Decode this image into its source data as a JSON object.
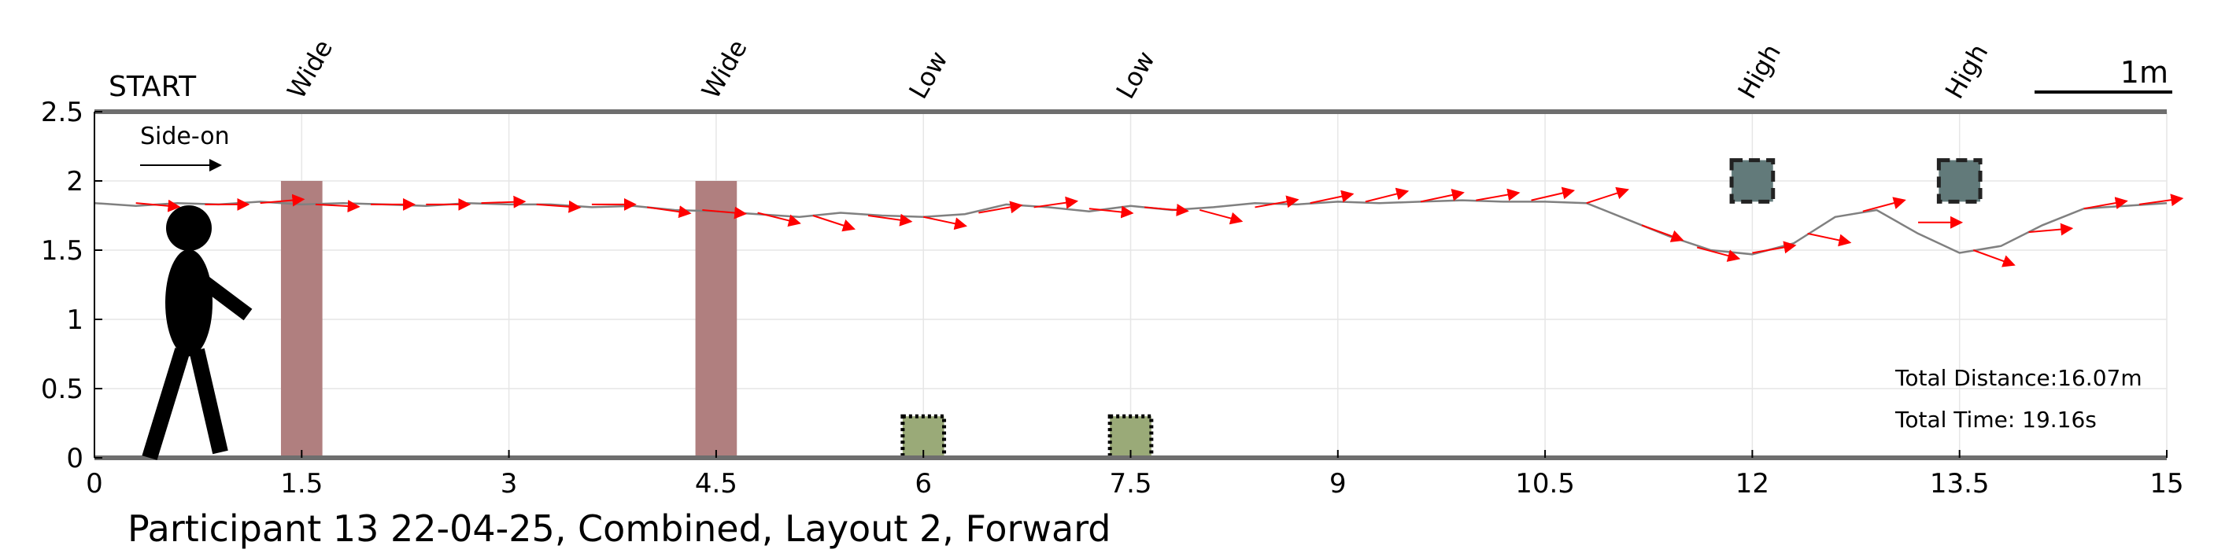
{
  "chart_data": {
    "type": "line",
    "title": "",
    "caption": "Participant 13 22-04-25, Combined, Layout 2, Forward",
    "start_label": "START",
    "scale_bar_label": "1m",
    "arrow_label": "Side-on",
    "xlim": [
      0,
      15
    ],
    "ylim": [
      0,
      2.5
    ],
    "grid": true,
    "x_ticks": [
      {
        "value": 0,
        "label": "0"
      },
      {
        "value": 1.5,
        "label": "1.5"
      },
      {
        "value": 3,
        "label": "3"
      },
      {
        "value": 4.5,
        "label": "4.5"
      },
      {
        "value": 6,
        "label": "6"
      },
      {
        "value": 7.5,
        "label": "7.5"
      },
      {
        "value": 9,
        "label": "9"
      },
      {
        "value": 10.5,
        "label": "10.5"
      },
      {
        "value": 12,
        "label": "12"
      },
      {
        "value": 13.5,
        "label": "13.5"
      },
      {
        "value": 15,
        "label": "15"
      }
    ],
    "y_ticks": [
      {
        "value": 0,
        "label": "0"
      },
      {
        "value": 0.5,
        "label": "0.5"
      },
      {
        "value": 1,
        "label": "1"
      },
      {
        "value": 1.5,
        "label": "1.5"
      },
      {
        "value": 2,
        "label": "2"
      },
      {
        "value": 2.5,
        "label": "2.5"
      }
    ],
    "obstacle_labels": [
      {
        "x": 1.5,
        "label": "Wide"
      },
      {
        "x": 4.5,
        "label": "Wide"
      },
      {
        "x": 6,
        "label": "Low"
      },
      {
        "x": 7.5,
        "label": "Low"
      },
      {
        "x": 12,
        "label": "High"
      },
      {
        "x": 13.5,
        "label": "High"
      }
    ],
    "obstacles": [
      {
        "kind": "wide",
        "x0": 1.35,
        "x1": 1.65,
        "y0": 0,
        "y1": 2.0,
        "color": "#b07f7f"
      },
      {
        "kind": "wide",
        "x0": 4.35,
        "x1": 4.65,
        "y0": 0,
        "y1": 2.0,
        "color": "#b07f7f"
      },
      {
        "kind": "low",
        "x0": 5.85,
        "x1": 6.15,
        "y0": 0,
        "y1": 0.3,
        "color": "#9aaa78"
      },
      {
        "kind": "low",
        "x0": 7.35,
        "x1": 7.65,
        "y0": 0,
        "y1": 0.3,
        "color": "#9aaa78"
      },
      {
        "kind": "high",
        "x0": 11.85,
        "x1": 12.15,
        "y0": 1.85,
        "y1": 2.15,
        "color": "#627a7a"
      },
      {
        "kind": "high",
        "x0": 13.35,
        "x1": 13.65,
        "y0": 1.85,
        "y1": 2.15,
        "color": "#627a7a"
      }
    ],
    "trajectory": {
      "color": "#808080",
      "x": [
        0,
        0.3,
        0.6,
        0.9,
        1.2,
        1.5,
        1.8,
        2.1,
        2.4,
        2.7,
        3.0,
        3.3,
        3.6,
        3.9,
        4.2,
        4.5,
        4.8,
        5.1,
        5.4,
        5.7,
        6.0,
        6.3,
        6.6,
        6.9,
        7.2,
        7.5,
        7.8,
        8.1,
        8.4,
        8.7,
        9.0,
        9.3,
        9.6,
        9.9,
        10.2,
        10.5,
        10.8,
        11.1,
        11.4,
        11.7,
        12.0,
        12.3,
        12.6,
        12.9,
        13.2,
        13.5,
        13.8,
        14.1,
        14.4,
        14.7,
        15.0
      ],
      "y": [
        1.84,
        1.82,
        1.84,
        1.83,
        1.85,
        1.83,
        1.84,
        1.83,
        1.82,
        1.84,
        1.83,
        1.83,
        1.81,
        1.82,
        1.79,
        1.78,
        1.76,
        1.74,
        1.77,
        1.75,
        1.74,
        1.76,
        1.83,
        1.81,
        1.78,
        1.82,
        1.79,
        1.81,
        1.84,
        1.83,
        1.85,
        1.84,
        1.85,
        1.86,
        1.85,
        1.85,
        1.84,
        1.72,
        1.6,
        1.5,
        1.47,
        1.55,
        1.74,
        1.79,
        1.62,
        1.48,
        1.53,
        1.68,
        1.8,
        1.82,
        1.84
      ]
    },
    "heading_arrows": {
      "color": "#ff0000",
      "x": [
        0.3,
        0.8,
        1.2,
        1.6,
        2.0,
        2.4,
        2.8,
        3.2,
        3.6,
        4.0,
        4.4,
        4.8,
        5.2,
        5.6,
        6.0,
        6.4,
        6.8,
        7.2,
        7.6,
        8.0,
        8.4,
        8.8,
        9.2,
        9.6,
        10.0,
        10.4,
        10.8,
        11.2,
        11.6,
        12.0,
        12.4,
        12.8,
        13.2,
        13.6,
        14.0,
        14.4,
        14.8
      ],
      "y": [
        1.84,
        1.83,
        1.84,
        1.83,
        1.83,
        1.83,
        1.84,
        1.83,
        1.83,
        1.81,
        1.79,
        1.77,
        1.75,
        1.75,
        1.74,
        1.77,
        1.81,
        1.8,
        1.81,
        1.79,
        1.81,
        1.84,
        1.85,
        1.85,
        1.86,
        1.86,
        1.84,
        1.68,
        1.52,
        1.48,
        1.62,
        1.78,
        1.7,
        1.5,
        1.63,
        1.8,
        1.83
      ],
      "angle_deg": [
        -5,
        0,
        5,
        -3,
        0,
        0,
        2,
        -4,
        0,
        -8,
        -5,
        -14,
        -18,
        -8,
        -12,
        10,
        8,
        -6,
        -5,
        -15,
        10,
        12,
        14,
        12,
        10,
        13,
        18,
        -20,
        -15,
        10,
        -12,
        15,
        0,
        -20,
        5,
        10,
        8
      ]
    },
    "annotations": {
      "distance": "Total Distance:16.07m",
      "time": "Total Time: 19.16s"
    }
  }
}
